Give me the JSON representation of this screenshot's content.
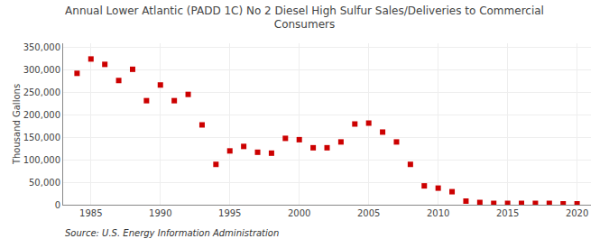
{
  "chart_data": {
    "type": "scatter",
    "title": "Annual Lower Atlantic (PADD 1C) No 2 Diesel High Sulfur Sales/Deliveries to Commercial\nConsumers",
    "y_label": "Thousand Gallons",
    "annotations": [
      "Source: U.S. Energy Information Administration"
    ],
    "x": [
      1984,
      1985,
      1986,
      1987,
      1988,
      1989,
      1990,
      1991,
      1992,
      1993,
      1994,
      1995,
      1996,
      1997,
      1998,
      1999,
      2000,
      2001,
      2002,
      2003,
      2004,
      2005,
      2006,
      2007,
      2008,
      2009,
      2010,
      2011,
      2012,
      2013,
      2014,
      2015,
      2016,
      2017,
      2018,
      2019,
      2020
    ],
    "values": [
      293000,
      325000,
      313000,
      277000,
      302000,
      232000,
      267000,
      232000,
      246000,
      178000,
      90000,
      120000,
      130000,
      117000,
      115000,
      148000,
      145000,
      127000,
      127000,
      140000,
      180000,
      182000,
      162000,
      140000,
      90000,
      42000,
      37000,
      29000,
      8000,
      5000,
      3000,
      3000,
      3000,
      3000,
      3000,
      2000,
      2000
    ],
    "color": "#cc0000",
    "marker": "square",
    "xlim": [
      1983,
      2021
    ],
    "ylim": [
      0,
      360000
    ],
    "xticks": [
      1985,
      1990,
      1995,
      2000,
      2005,
      2010,
      2015,
      2020
    ],
    "yticks": [
      0,
      {
        "value": 50000,
        "label": "50,000"
      },
      {
        "value": 100000,
        "label": "100,000"
      },
      {
        "value": 150000,
        "label": "150,000"
      },
      {
        "value": 200000,
        "label": "200,000"
      },
      {
        "value": 250000,
        "label": "250,000"
      },
      {
        "value": 300000,
        "label": "300,000"
      },
      {
        "value": 350000,
        "label": "350,000"
      }
    ],
    "grid": true
  }
}
